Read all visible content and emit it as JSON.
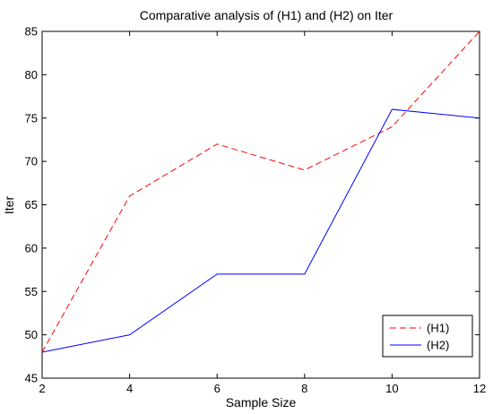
{
  "chart_data": {
    "type": "line",
    "title": "Comparative analysis of (H1) and (H2) on Iter",
    "xlabel": "Sample Size",
    "ylabel": "Iter",
    "x": [
      2,
      4,
      6,
      8,
      10,
      12
    ],
    "xlim": [
      2,
      12
    ],
    "ylim": [
      45,
      85
    ],
    "xticks": [
      2,
      4,
      6,
      8,
      10,
      12
    ],
    "yticks": [
      45,
      50,
      55,
      60,
      65,
      70,
      75,
      80,
      85
    ],
    "grid": false,
    "legend_position": "bottom-right",
    "series": [
      {
        "name": "(H1)",
        "values": [
          48,
          66,
          72,
          69,
          74,
          85
        ],
        "color": "#ff0000",
        "style": "dashed"
      },
      {
        "name": "(H2)",
        "values": [
          48,
          50,
          57,
          57,
          76,
          75
        ],
        "color": "#0000ff",
        "style": "solid"
      }
    ]
  }
}
